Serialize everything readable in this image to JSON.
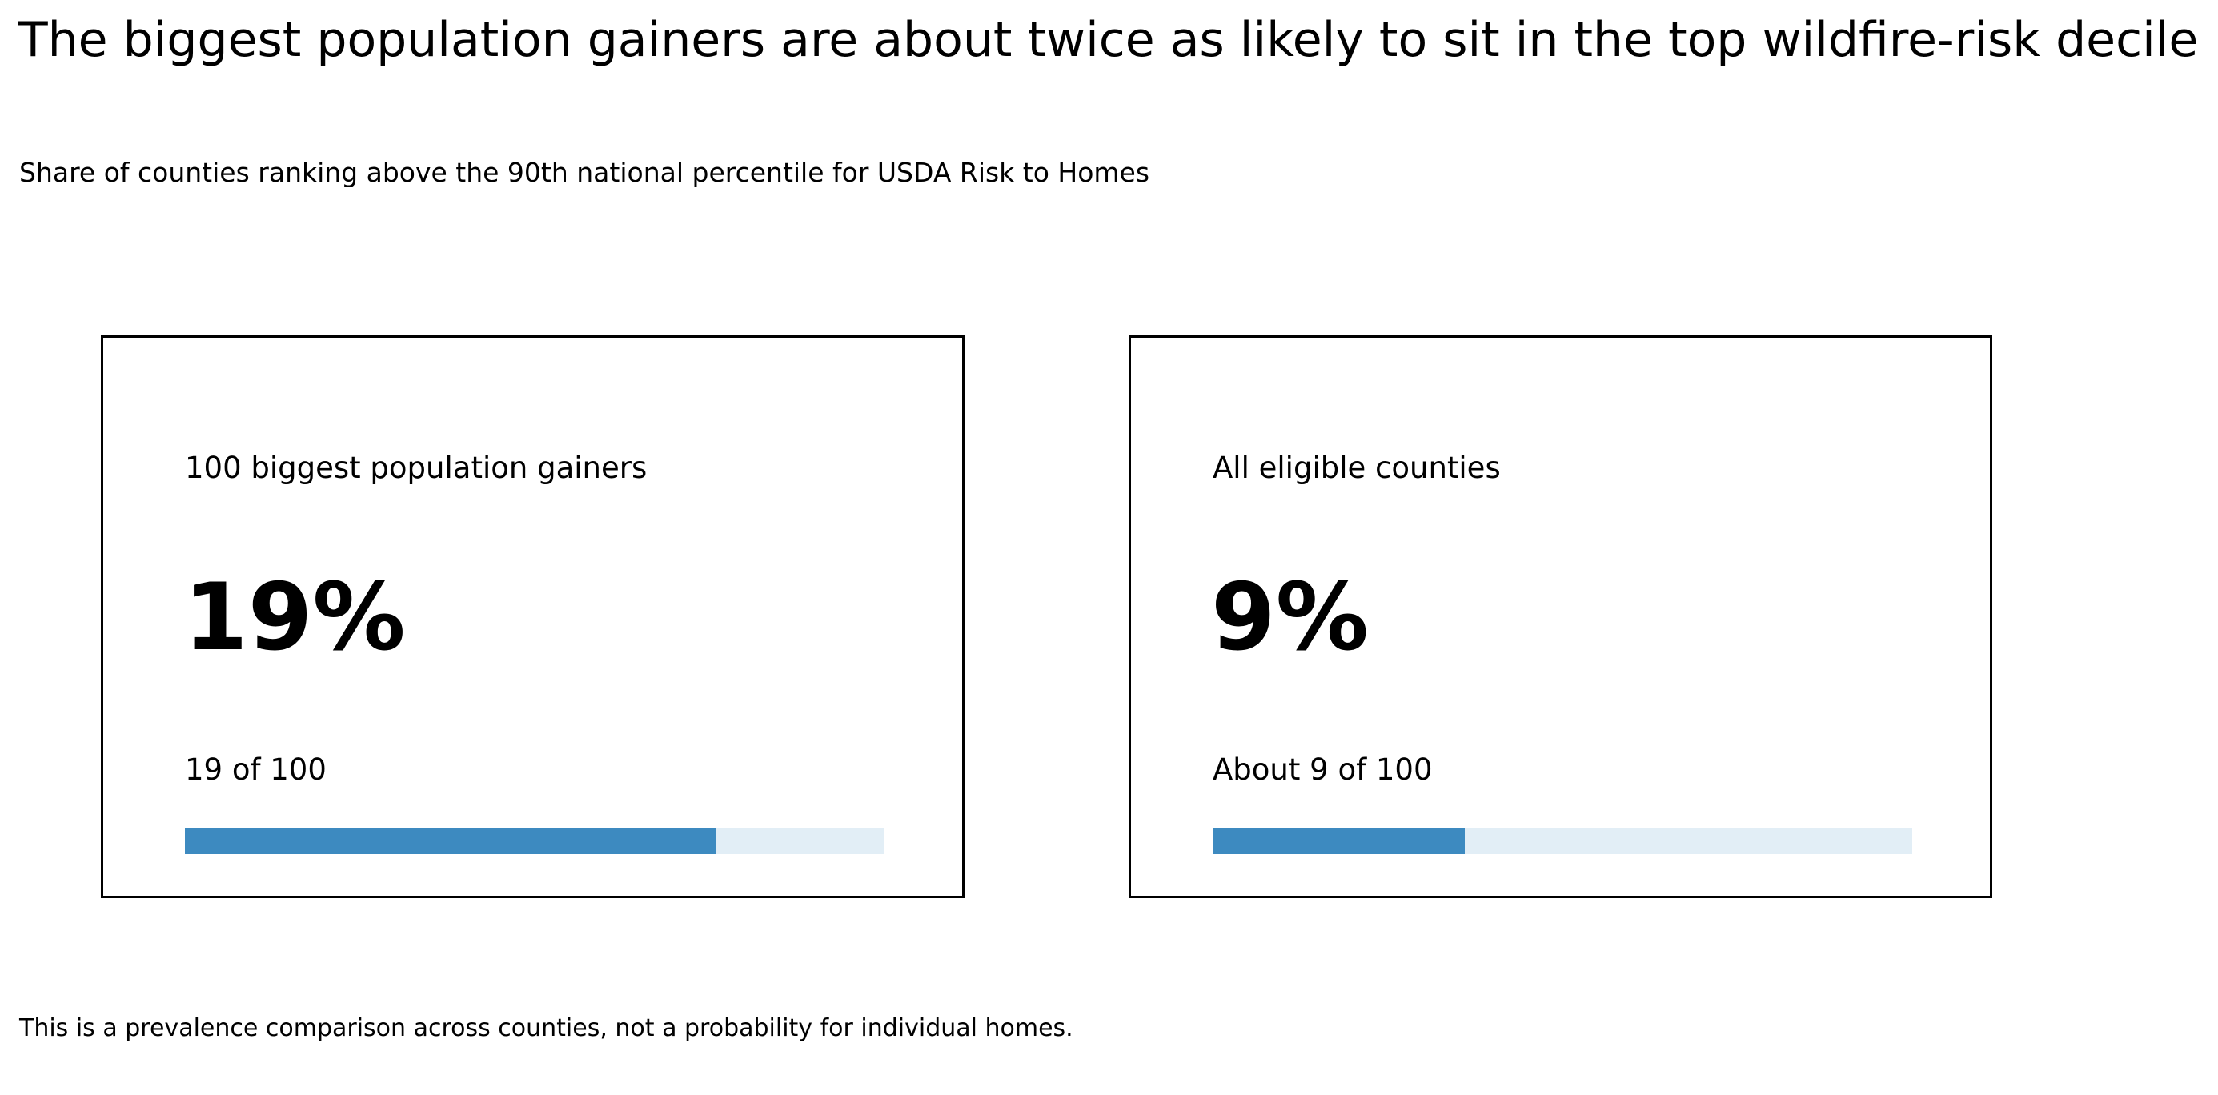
{
  "chart_data": {
    "type": "bar",
    "title": "The biggest population gainers are about twice as likely to sit in the top wildfire-risk decile",
    "subtitle": "Share of counties ranking above the 90th national percentile for USDA Risk to Homes",
    "scale_max_percent": 25,
    "cards": [
      {
        "label": "100 biggest population gainers",
        "value_text": "19%",
        "count_text": "19 of 100",
        "value_percent": 19
      },
      {
        "label": "All eligible counties",
        "value_text": "9%",
        "count_text": "About 9 of 100",
        "value_percent": 9
      }
    ],
    "footnote": "This is a prevalence comparison across counties, not a probability for individual homes.",
    "colors": {
      "bar_fill": "#3d8ac0",
      "bar_track": "#e2eef6",
      "border": "#000000"
    }
  }
}
